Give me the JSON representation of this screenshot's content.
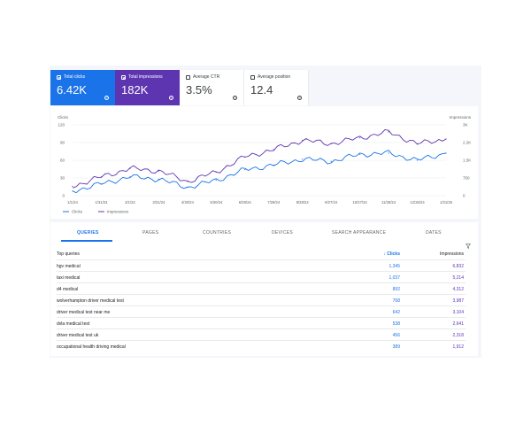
{
  "metrics": {
    "clicks": {
      "label": "Total clicks",
      "value": "6.42K",
      "checked": true
    },
    "impressions": {
      "label": "Total impressions",
      "value": "182K",
      "checked": true
    },
    "ctr": {
      "label": "Average CTR",
      "value": "3.5%",
      "checked": false
    },
    "position": {
      "label": "Average position",
      "value": "12.4",
      "checked": false
    }
  },
  "colors": {
    "clicks": "#1a73e8",
    "impressions": "#5e35b1"
  },
  "chart_data": {
    "type": "line",
    "left_axis_label": "Clicks",
    "right_axis_label": "Impressions",
    "left_ticks": [
      "120",
      "90",
      "60",
      "30",
      "0"
    ],
    "right_ticks": [
      "3K",
      "2.2K",
      "1.5K",
      "750",
      "0"
    ],
    "x_tick_labels": [
      "1/1/24",
      "1/31/24",
      "3/1/24",
      "3/31/24",
      "4/30/24",
      "5/30/24",
      "6/29/24",
      "7/29/24",
      "8/28/24",
      "9/27/24",
      "10/27/24",
      "11/26/24",
      "12/26/24",
      "1/31/25"
    ],
    "ylim_clicks": [
      0,
      120
    ],
    "ylim_impressions": [
      0,
      3000
    ],
    "legend": [
      "Clicks",
      "Impressions"
    ],
    "series": [
      {
        "name": "Clicks",
        "axis": "left",
        "x": [
          "1/1/24",
          "1/31/24",
          "3/1/24",
          "3/31/24",
          "4/30/24",
          "5/30/24",
          "6/29/24",
          "7/29/24",
          "8/28/24",
          "9/27/24",
          "10/27/24",
          "11/26/24",
          "12/26/24",
          "1/31/25"
        ],
        "values": [
          8,
          20,
          32,
          28,
          14,
          26,
          44,
          52,
          62,
          58,
          70,
          72,
          60,
          72
        ]
      },
      {
        "name": "Impressions",
        "axis": "right",
        "x": [
          "1/1/24",
          "1/31/24",
          "3/1/24",
          "3/31/24",
          "4/30/24",
          "5/30/24",
          "6/29/24",
          "7/29/24",
          "8/28/24",
          "9/27/24",
          "10/27/24",
          "11/26/24",
          "12/26/24",
          "1/31/25"
        ],
        "values": [
          400,
          800,
          1150,
          1050,
          600,
          1000,
          1650,
          1950,
          2350,
          2200,
          2450,
          2700,
          2200,
          2400
        ]
      }
    ]
  },
  "tabs": [
    "QUERIES",
    "PAGES",
    "COUNTRIES",
    "DEVICES",
    "SEARCH APPEARANCE",
    "DATES"
  ],
  "table": {
    "headers": {
      "query": "Top queries",
      "clicks": "Clicks",
      "impressions": "Impressions"
    },
    "rows": [
      {
        "query": "hgv medical",
        "clicks": "1,345",
        "impressions": "6,832"
      },
      {
        "query": "taxi medical",
        "clicks": "1,037",
        "impressions": "5,214"
      },
      {
        "query": "d4 medical",
        "clicks": "892",
        "impressions": "4,312"
      },
      {
        "query": "wolverhampton driver medical test",
        "clicks": "768",
        "impressions": "3,987"
      },
      {
        "query": "driver medical test near me",
        "clicks": "642",
        "impressions": "3,104"
      },
      {
        "query": "dvla medical test",
        "clicks": "538",
        "impressions": "2,641"
      },
      {
        "query": "driver medical test uk",
        "clicks": "456",
        "impressions": "2,318"
      },
      {
        "query": "occupational health driving medical",
        "clicks": "389",
        "impressions": "1,912"
      }
    ]
  }
}
